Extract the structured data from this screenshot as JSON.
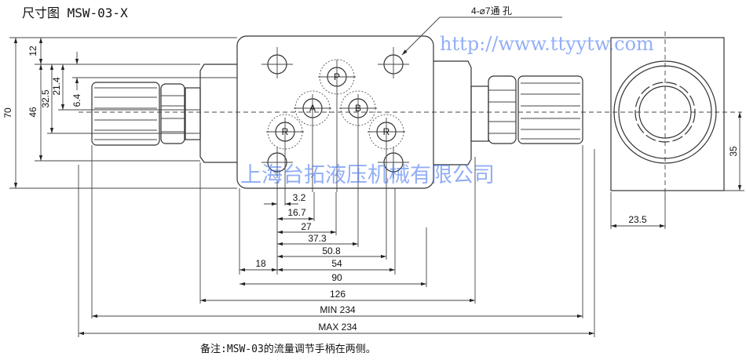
{
  "title": "尺寸图 MSW-03-X",
  "hole_callout": "4-⌀7通 孔",
  "ports": {
    "p": "P",
    "a": "A",
    "b": "B",
    "r1": "R",
    "r2": "R"
  },
  "vertical_dims": {
    "d70": "70",
    "d12": "12",
    "d46": "46",
    "d32_5": "32.5",
    "d21_4": "21.4",
    "d6_4": "6.4",
    "d35": "35"
  },
  "horizontal_dims": {
    "d3_2": "3.2",
    "d16_7": "16.7",
    "d27": "27",
    "d37_3": "37.3",
    "d50_8": "50.8",
    "d18": "18",
    "d54": "54",
    "d90": "90",
    "d126": "126",
    "min234": "MIN 234",
    "max234": "MAX 234",
    "d23_5": "23.5"
  },
  "note": "备注:MSW-03的流量调节手柄在两侧。",
  "watermark": {
    "company": "上海台拓液压机械有限公司",
    "url": "http://www.ttyytw.com"
  },
  "colors": {
    "line": "#333333",
    "watermark": "#3a6cf0"
  }
}
